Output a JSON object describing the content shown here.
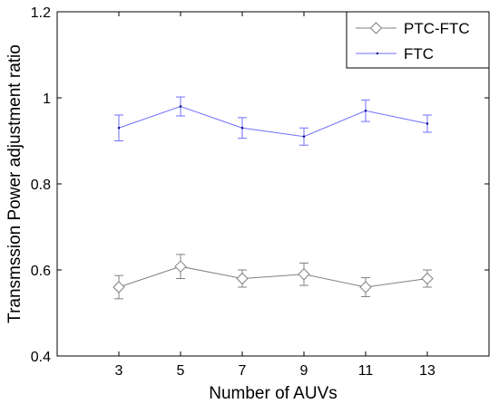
{
  "chart_data": {
    "type": "line",
    "xlabel": "Number of AUVs",
    "ylabel": "Transmssion Power adjustment ratio",
    "xlim": [
      1,
      15
    ],
    "ylim": [
      0.4,
      1.2
    ],
    "x_ticks": [
      3,
      5,
      7,
      9,
      11,
      13
    ],
    "x_tick_labels": [
      "3",
      "5",
      "7",
      "9",
      "11",
      "13"
    ],
    "y_ticks": [
      0.4,
      0.6,
      0.8,
      1.0,
      1.2
    ],
    "y_tick_labels": [
      "0.4",
      "0.6",
      "0.8",
      "1",
      "1.2"
    ],
    "grid": false,
    "legend_position": "top-right",
    "x": [
      3,
      5,
      7,
      9,
      11,
      13
    ],
    "series": [
      {
        "name": "PTC-FTC",
        "color": "#808080",
        "marker": "diamond",
        "values": [
          0.56,
          0.608,
          0.58,
          0.59,
          0.56,
          0.58
        ],
        "error": [
          0.027,
          0.028,
          0.02,
          0.026,
          0.022,
          0.02
        ]
      },
      {
        "name": "FTC",
        "color": "#6f6fff",
        "marker": "point",
        "values": [
          0.93,
          0.98,
          0.93,
          0.91,
          0.97,
          0.94
        ],
        "error": [
          0.03,
          0.022,
          0.024,
          0.02,
          0.025,
          0.02
        ]
      }
    ]
  }
}
